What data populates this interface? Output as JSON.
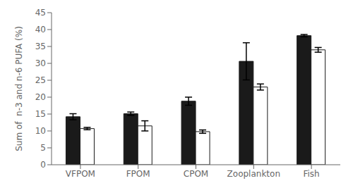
{
  "chart_data": {
    "type": "bar",
    "ylabel": "Sum of  n-3 and n-6 PUFA (%)",
    "categories": [
      "VFPOM",
      "FPOM",
      "CPOM",
      "Zooplankton",
      "Fish"
    ],
    "series": [
      {
        "color": "#1a1a1a",
        "values": [
          14.2,
          15.1,
          18.8,
          30.6,
          38.2
        ],
        "error": [
          0.9,
          0.5,
          1.2,
          5.5,
          0.35
        ]
      },
      {
        "color": "#ffffff",
        "values": [
          10.7,
          11.5,
          9.8,
          23.0,
          34.0
        ],
        "error": [
          0.35,
          1.5,
          0.5,
          0.9,
          0.7
        ]
      }
    ],
    "ylim": [
      0,
      45
    ],
    "yticks": [
      0,
      5,
      10,
      15,
      20,
      25,
      30,
      35,
      40,
      45
    ],
    "grid": false
  }
}
